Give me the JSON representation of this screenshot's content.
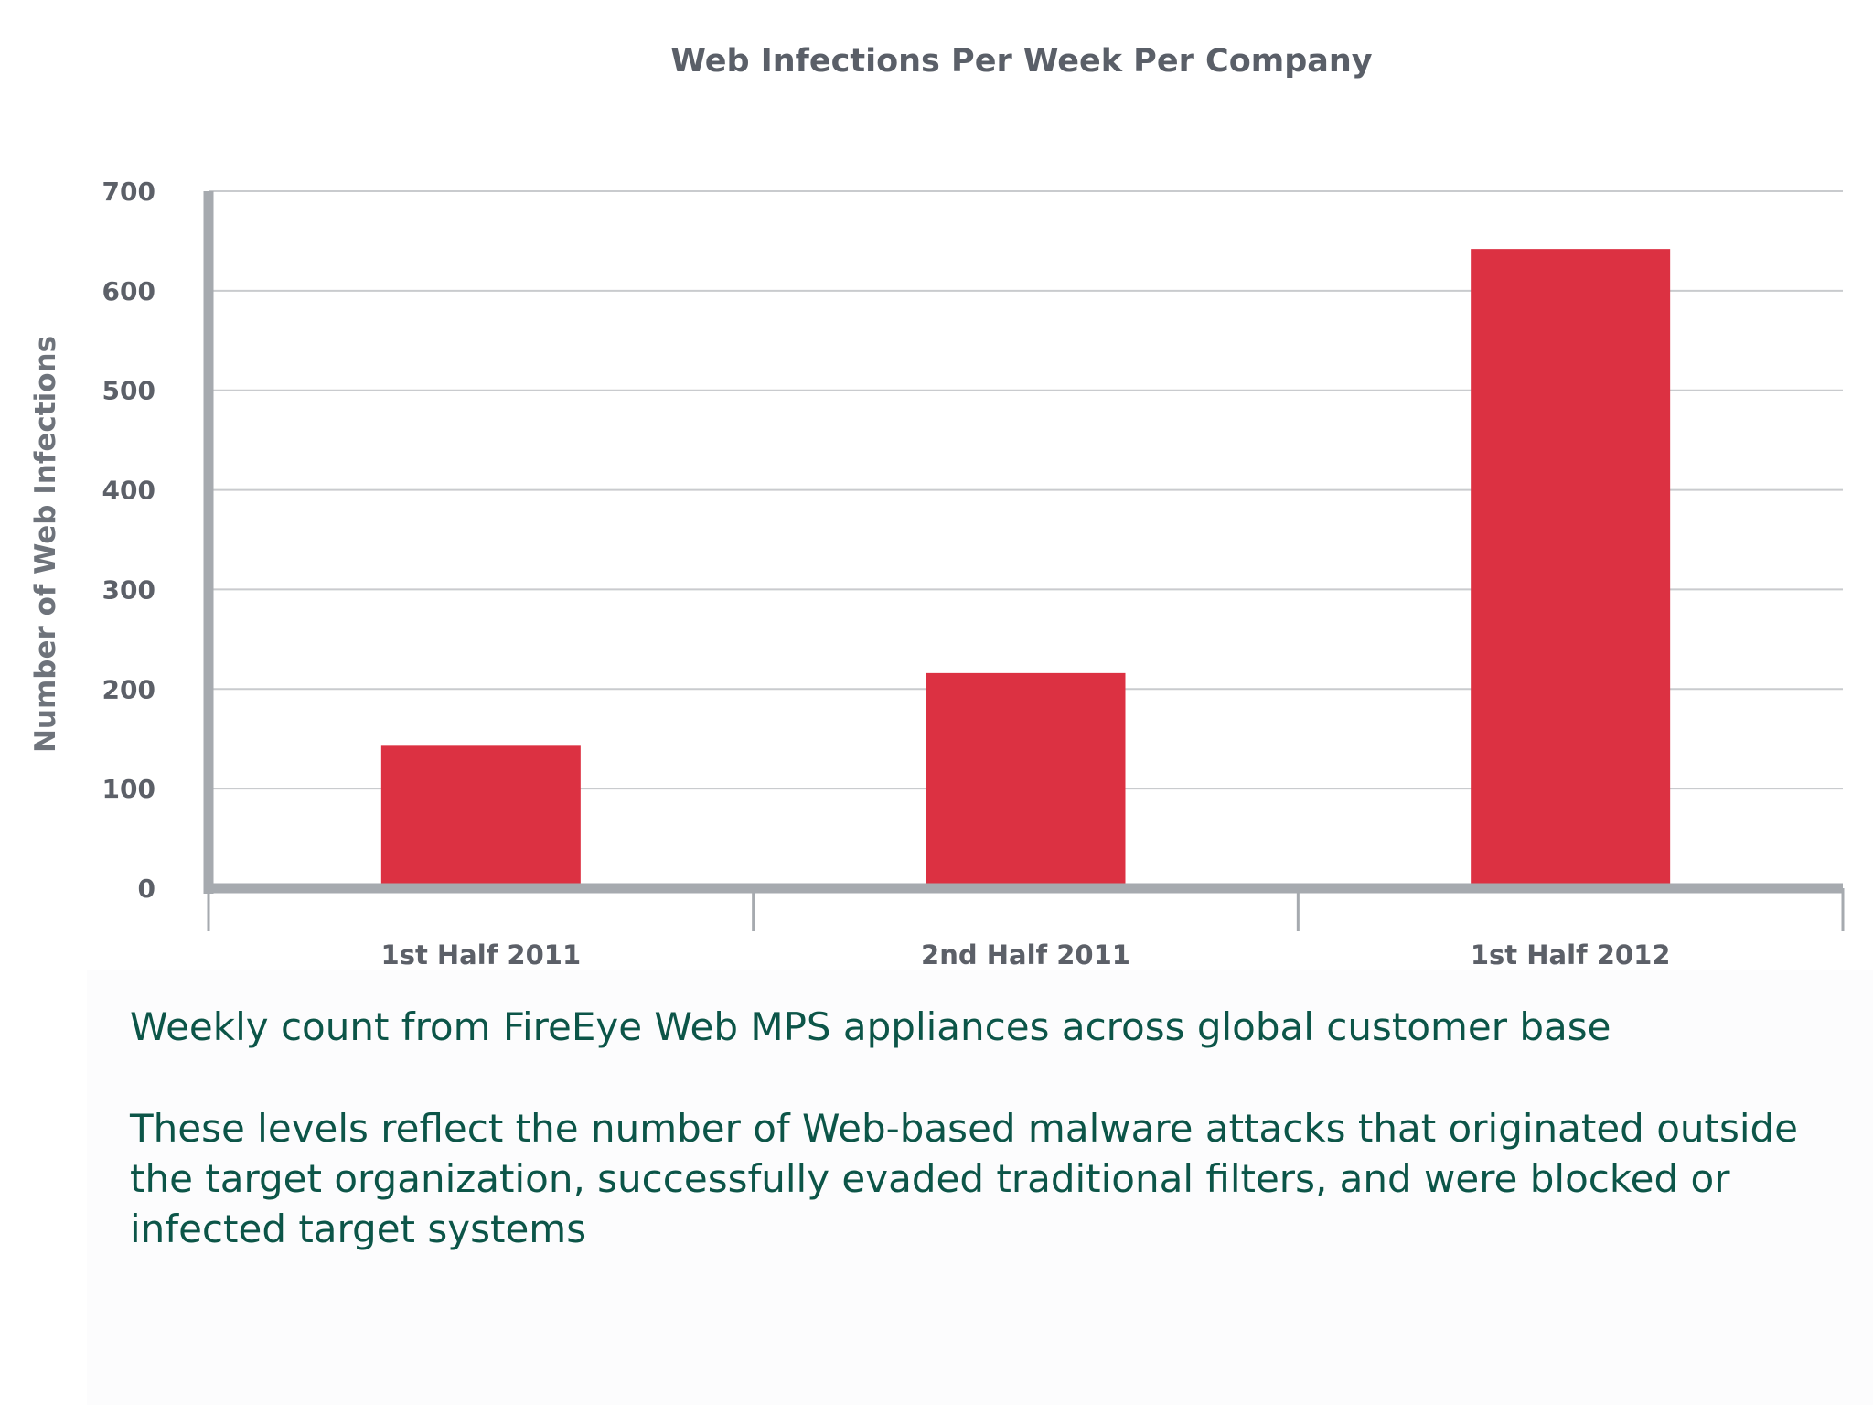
{
  "chart_data": {
    "type": "bar",
    "title": "Web Infections Per Week Per Company",
    "ylabel": "Number of Web Infections",
    "xlabel": "",
    "categories": [
      "1st Half 2011",
      "2nd Half 2011",
      "1st Half 2012"
    ],
    "values": [
      143,
      216,
      642
    ],
    "ylim": [
      0,
      700
    ],
    "yticks": [
      0,
      100,
      200,
      300,
      400,
      500,
      600,
      700
    ],
    "grid": true,
    "legend": "none",
    "colors": {
      "bar": "#dc3142",
      "axis": "#a6aaaf",
      "grid": "#c9cbce"
    }
  },
  "notes": {
    "line1": "Weekly count from FireEye Web MPS appliances across global customer base",
    "line2": "These levels reflect the number of Web-based malware attacks that originated outside the target organization, successfully evaded traditional filters, and were blocked or infected target systems"
  }
}
